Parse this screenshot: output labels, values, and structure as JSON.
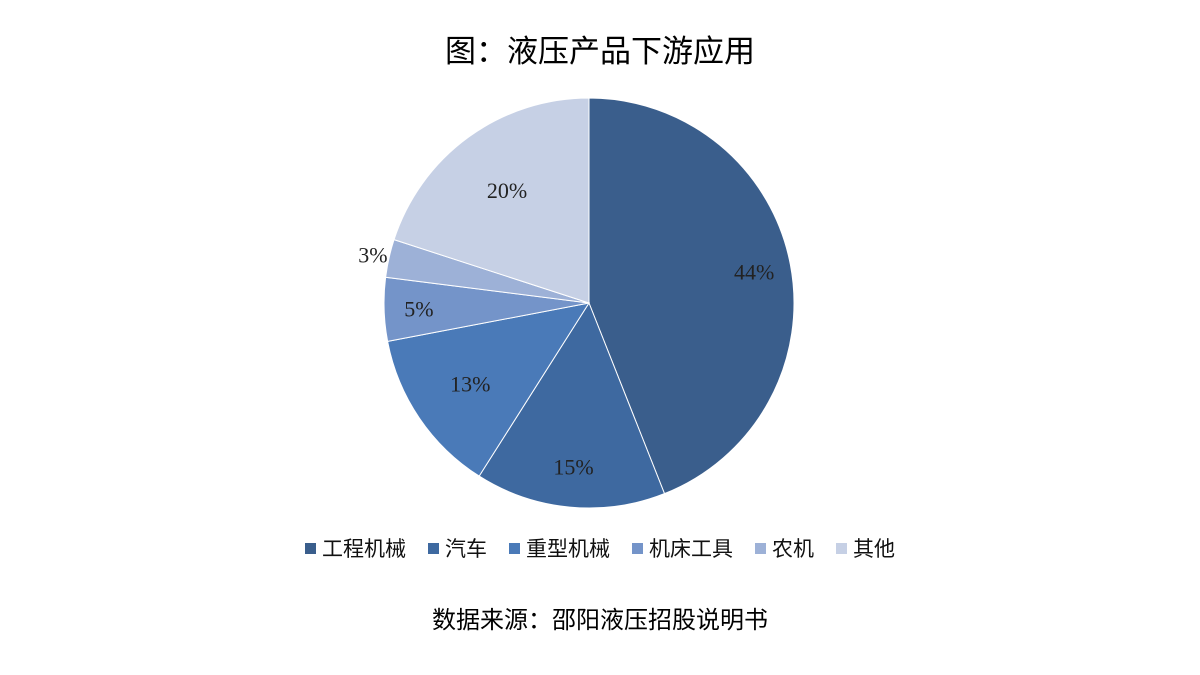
{
  "chart_data": {
    "type": "pie",
    "title": "图：液压产品下游应用",
    "source": "数据来源：邵阳液压招股说明书",
    "legend_position": "bottom",
    "slices": [
      {
        "name": "工程机械",
        "value": 44,
        "label": "44%",
        "color": "#3A5E8C"
      },
      {
        "name": "汽车",
        "value": 15,
        "label": "15%",
        "color": "#3E69A0"
      },
      {
        "name": "重型机械",
        "value": 13,
        "label": "13%",
        "color": "#4A7AB8"
      },
      {
        "name": "机床工具",
        "value": 5,
        "label": "5%",
        "color": "#7494C9"
      },
      {
        "name": "农机",
        "value": 3,
        "label": "3%",
        "color": "#9DB1D7"
      },
      {
        "name": "其他",
        "value": 20,
        "label": "20%",
        "color": "#C6D0E5"
      }
    ]
  }
}
